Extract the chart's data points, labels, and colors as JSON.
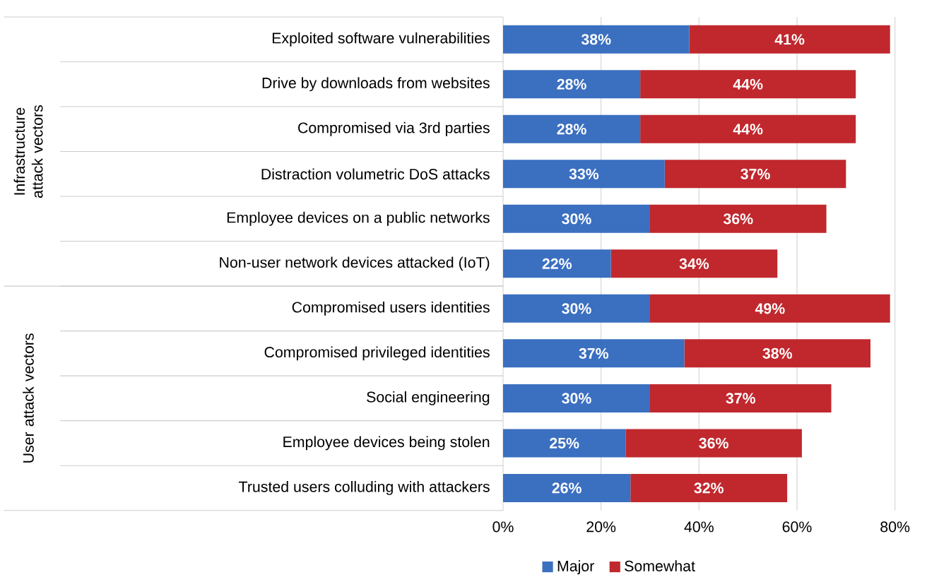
{
  "chart_data": {
    "type": "bar",
    "orientation": "horizontal",
    "stacked": true,
    "categories": [
      "Exploited software vulnerabilities",
      "Drive by downloads from websites",
      "Compromised via 3rd parties",
      "Distraction volumetric DoS attacks",
      "Employee devices on a public networks",
      "Non-user network devices attacked (IoT)",
      "Compromised users identities",
      "Compromised privileged identities",
      "Social engineering",
      "Employee devices being stolen",
      "Trusted users colluding with attackers"
    ],
    "series": [
      {
        "name": "Major",
        "color": "#3b6fc0",
        "values": [
          38,
          28,
          28,
          33,
          30,
          22,
          30,
          37,
          30,
          25,
          26
        ],
        "value_labels": [
          "38%",
          "28%",
          "28%",
          "33%",
          "30%",
          "22%",
          "30%",
          "37%",
          "30%",
          "25%",
          "26%"
        ]
      },
      {
        "name": "Somewhat",
        "color": "#c0282d",
        "values": [
          41,
          44,
          44,
          37,
          36,
          34,
          49,
          38,
          37,
          36,
          32
        ],
        "value_labels": [
          "41%",
          "44%",
          "44%",
          "37%",
          "36%",
          "34%",
          "49%",
          "38%",
          "37%",
          "36%",
          "32%"
        ]
      }
    ],
    "xlim": [
      0,
      80
    ],
    "xticks": [
      {
        "value": 0,
        "label": "0%"
      },
      {
        "value": 20,
        "label": "20%"
      },
      {
        "value": 40,
        "label": "40%"
      },
      {
        "value": 60,
        "label": "60%"
      },
      {
        "value": 80,
        "label": "80%"
      }
    ],
    "grid": "x",
    "legend": "bottom",
    "annotations": [
      "Infrastructure attack vectors",
      "User attack vectors"
    ]
  }
}
